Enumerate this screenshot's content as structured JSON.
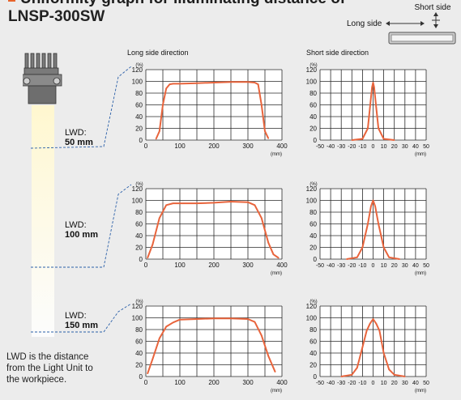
{
  "header": {
    "title_line1": "Uniformity graph for illuminating distance of",
    "title_line2": "LNSP-300SW",
    "accent": "#e8642c"
  },
  "orientation": {
    "short_side": "Short side",
    "long_side": "Long side"
  },
  "panels": {
    "long_title": "Long side direction",
    "short_title": "Short side direction"
  },
  "lwd": [
    {
      "label": "LWD:",
      "value": "50 mm"
    },
    {
      "label": "LWD:",
      "value": "100 mm"
    },
    {
      "label": "LWD:",
      "value": "150 mm"
    }
  ],
  "note": "LWD is the distance from the Light Unit to the workpiece.",
  "chart_data": [
    {
      "type": "line",
      "panel": "long",
      "lwd": "50 mm",
      "ylabel": "(%)",
      "xlabel": "(mm)",
      "ylim": [
        0,
        120
      ],
      "xlim": [
        0,
        400
      ],
      "x": [
        30,
        40,
        50,
        60,
        70,
        80,
        100,
        150,
        200,
        250,
        300,
        320,
        330,
        340,
        350,
        360
      ],
      "y": [
        2,
        15,
        60,
        88,
        95,
        96,
        96,
        97,
        98,
        99,
        99,
        98,
        95,
        60,
        15,
        3
      ]
    },
    {
      "type": "line",
      "panel": "short",
      "lwd": "50 mm",
      "ylabel": "(%)",
      "xlabel": "(mm)",
      "ylim": [
        0,
        120
      ],
      "xlim": [
        -50,
        50
      ],
      "x": [
        -20,
        -10,
        -5,
        -3,
        -1,
        0,
        1,
        3,
        5,
        10,
        20
      ],
      "y": [
        0,
        2,
        20,
        55,
        90,
        98,
        90,
        55,
        20,
        2,
        0
      ]
    },
    {
      "type": "line",
      "panel": "long",
      "lwd": "100 mm",
      "ylabel": "(%)",
      "xlabel": "(mm)",
      "ylim": [
        0,
        120
      ],
      "xlim": [
        0,
        400
      ],
      "x": [
        5,
        20,
        40,
        60,
        80,
        100,
        150,
        200,
        250,
        300,
        320,
        340,
        360,
        375,
        390
      ],
      "y": [
        2,
        25,
        70,
        92,
        95,
        95,
        95,
        96,
        98,
        97,
        92,
        70,
        28,
        8,
        2
      ]
    },
    {
      "type": "line",
      "panel": "short",
      "lwd": "100 mm",
      "ylabel": "(%)",
      "xlabel": "(mm)",
      "ylim": [
        0,
        120
      ],
      "xlim": [
        -50,
        50
      ],
      "x": [
        -25,
        -15,
        -10,
        -5,
        -2,
        0,
        2,
        5,
        10,
        15,
        25
      ],
      "y": [
        0,
        3,
        20,
        60,
        90,
        100,
        90,
        60,
        20,
        3,
        0
      ]
    },
    {
      "type": "line",
      "panel": "long",
      "lwd": "150 mm",
      "ylabel": "(%)",
      "xlabel": "(mm)",
      "ylim": [
        0,
        120
      ],
      "xlim": [
        0,
        400
      ],
      "x": [
        5,
        20,
        40,
        60,
        80,
        100,
        150,
        200,
        250,
        300,
        320,
        340,
        360,
        380
      ],
      "y": [
        5,
        30,
        65,
        85,
        92,
        97,
        98,
        99,
        99,
        98,
        93,
        70,
        35,
        8
      ]
    },
    {
      "type": "line",
      "panel": "short",
      "lwd": "150 mm",
      "ylabel": "(%)",
      "xlabel": "(mm)",
      "ylim": [
        0,
        120
      ],
      "xlim": [
        -50,
        50
      ],
      "x": [
        -30,
        -20,
        -15,
        -10,
        -6,
        -3,
        0,
        3,
        6,
        10,
        15,
        20,
        30
      ],
      "y": [
        0,
        3,
        15,
        50,
        78,
        90,
        98,
        90,
        78,
        40,
        12,
        3,
        0
      ]
    }
  ],
  "colors": {
    "line": "#e8643c",
    "grid": "#2a2a2a",
    "plot_bg": "#ffffff"
  }
}
